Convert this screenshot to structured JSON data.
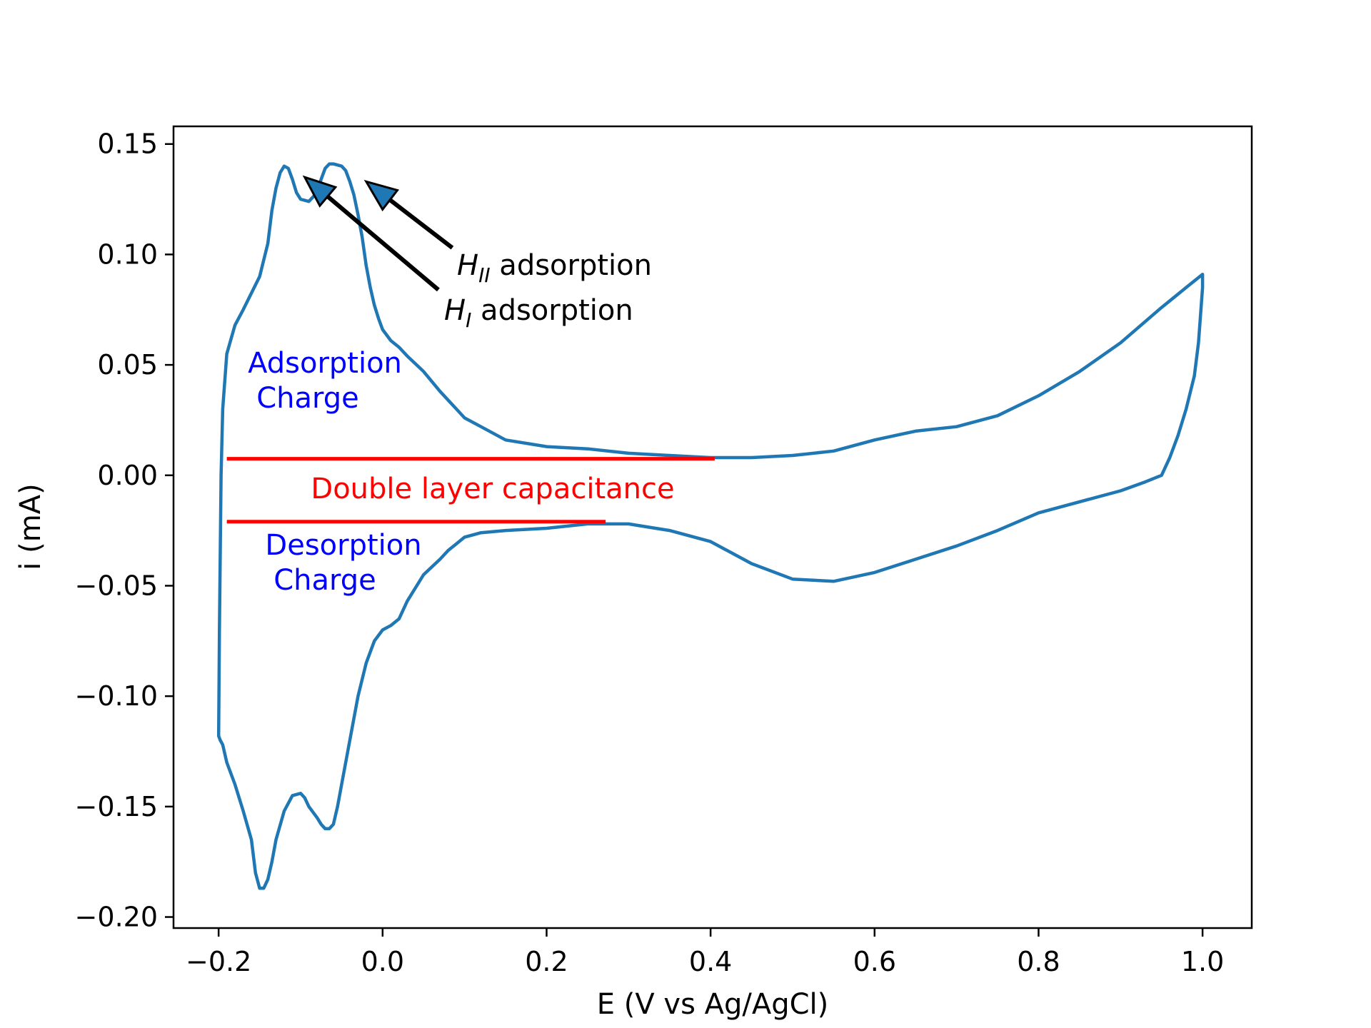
{
  "chart_data": {
    "type": "line",
    "title": "",
    "xlabel": "E (V vs Ag/AgCl)",
    "ylabel": "i (mA)",
    "xlim": [
      -0.255,
      1.06
    ],
    "ylim": [
      -0.205,
      0.158
    ],
    "grid": false,
    "xticks": [
      {
        "value": -0.2,
        "label": "−0.2"
      },
      {
        "value": 0.0,
        "label": "0.0"
      },
      {
        "value": 0.2,
        "label": "0.2"
      },
      {
        "value": 0.4,
        "label": "0.4"
      },
      {
        "value": 0.6,
        "label": "0.6"
      },
      {
        "value": 0.8,
        "label": "0.8"
      },
      {
        "value": 1.0,
        "label": "1.0"
      }
    ],
    "yticks": [
      {
        "value": 0.15,
        "label": "0.15"
      },
      {
        "value": 0.1,
        "label": "0.10"
      },
      {
        "value": 0.05,
        "label": "0.05"
      },
      {
        "value": 0.0,
        "label": "0.00"
      },
      {
        "value": -0.05,
        "label": "−0.05"
      },
      {
        "value": -0.1,
        "label": "−0.10"
      },
      {
        "value": -0.15,
        "label": "−0.15"
      },
      {
        "value": -0.2,
        "label": "−0.20"
      }
    ],
    "series": [
      {
        "color": "#1f77b4",
        "x": [
          -0.2,
          -0.199,
          -0.197,
          -0.195,
          -0.19,
          -0.18,
          -0.17,
          -0.15,
          -0.14,
          -0.135,
          -0.13,
          -0.125,
          -0.12,
          -0.115,
          -0.11,
          -0.105,
          -0.1,
          -0.09,
          -0.08,
          -0.075,
          -0.07,
          -0.065,
          -0.06,
          -0.05,
          -0.045,
          -0.04,
          -0.035,
          -0.03,
          -0.025,
          -0.02,
          -0.015,
          -0.01,
          -0.005,
          0.0,
          0.01,
          0.02,
          0.03,
          0.05,
          0.07,
          0.09,
          0.1,
          0.12,
          0.15,
          0.2,
          0.25,
          0.3,
          0.35,
          0.4,
          0.45,
          0.5,
          0.55,
          0.6,
          0.65,
          0.7,
          0.75,
          0.8,
          0.85,
          0.9,
          0.95,
          0.98,
          1.0,
          1.0,
          0.995,
          0.99,
          0.98,
          0.97,
          0.96,
          0.95,
          0.93,
          0.9,
          0.85,
          0.8,
          0.75,
          0.7,
          0.65,
          0.6,
          0.55,
          0.5,
          0.45,
          0.4,
          0.35,
          0.3,
          0.25,
          0.2,
          0.15,
          0.12,
          0.1,
          0.09,
          0.08,
          0.07,
          0.05,
          0.03,
          0.02,
          0.01,
          0.0,
          -0.01,
          -0.02,
          -0.03,
          -0.04,
          -0.05,
          -0.055,
          -0.06,
          -0.065,
          -0.07,
          -0.075,
          -0.08,
          -0.09,
          -0.095,
          -0.1,
          -0.11,
          -0.12,
          -0.13,
          -0.135,
          -0.14,
          -0.145,
          -0.15,
          -0.155,
          -0.16,
          -0.17,
          -0.18,
          -0.19,
          -0.195,
          -0.198,
          -0.2,
          -0.2,
          -0.2
        ],
        "y": [
          -0.118,
          -0.07,
          0.0,
          0.03,
          0.055,
          0.068,
          0.075,
          0.09,
          0.105,
          0.12,
          0.13,
          0.137,
          0.14,
          0.139,
          0.134,
          0.128,
          0.125,
          0.124,
          0.128,
          0.134,
          0.139,
          0.141,
          0.141,
          0.14,
          0.138,
          0.133,
          0.127,
          0.118,
          0.108,
          0.095,
          0.085,
          0.077,
          0.071,
          0.066,
          0.061,
          0.058,
          0.054,
          0.047,
          0.038,
          0.03,
          0.026,
          0.022,
          0.016,
          0.013,
          0.012,
          0.01,
          0.009,
          0.008,
          0.008,
          0.009,
          0.011,
          0.016,
          0.02,
          0.022,
          0.027,
          0.036,
          0.047,
          0.06,
          0.076,
          0.085,
          0.091,
          0.085,
          0.06,
          0.045,
          0.03,
          0.018,
          0.008,
          0.0,
          -0.003,
          -0.007,
          -0.012,
          -0.017,
          -0.025,
          -0.032,
          -0.038,
          -0.044,
          -0.048,
          -0.047,
          -0.04,
          -0.03,
          -0.025,
          -0.022,
          -0.022,
          -0.024,
          -0.025,
          -0.026,
          -0.028,
          -0.031,
          -0.034,
          -0.038,
          -0.045,
          -0.057,
          -0.065,
          -0.068,
          -0.07,
          -0.075,
          -0.085,
          -0.1,
          -0.12,
          -0.14,
          -0.15,
          -0.158,
          -0.16,
          -0.16,
          -0.158,
          -0.155,
          -0.15,
          -0.146,
          -0.144,
          -0.145,
          -0.152,
          -0.165,
          -0.175,
          -0.183,
          -0.187,
          -0.187,
          -0.18,
          -0.165,
          -0.152,
          -0.14,
          -0.13,
          -0.122,
          -0.12,
          -0.118,
          -0.118,
          -0.118
        ]
      }
    ],
    "reference_lines": [
      {
        "x": [
          -0.19,
          0.405
        ],
        "y": [
          0.0075,
          0.0075
        ],
        "color": "#ff0000"
      },
      {
        "x": [
          -0.19,
          0.272
        ],
        "y": [
          -0.021,
          -0.021
        ],
        "color": "#ff0000"
      }
    ],
    "annotations": {
      "h2": {
        "sub": "II",
        "suffix": " adsorption",
        "arrow_tip": {
          "x": -0.02,
          "y": 0.133
        },
        "arrow_tail": {
          "x": 0.085,
          "y": 0.103
        }
      },
      "h1": {
        "sub": "I",
        "suffix": " adsorption",
        "arrow_tip": {
          "x": -0.095,
          "y": 0.135
        },
        "arrow_tail": {
          "x": 0.068,
          "y": 0.084
        }
      },
      "adsorption_label": [
        "Adsorption",
        "Charge"
      ],
      "double_layer_label": "Double layer capacitance",
      "desorption_label": [
        "Desorption",
        "Charge"
      ]
    }
  }
}
